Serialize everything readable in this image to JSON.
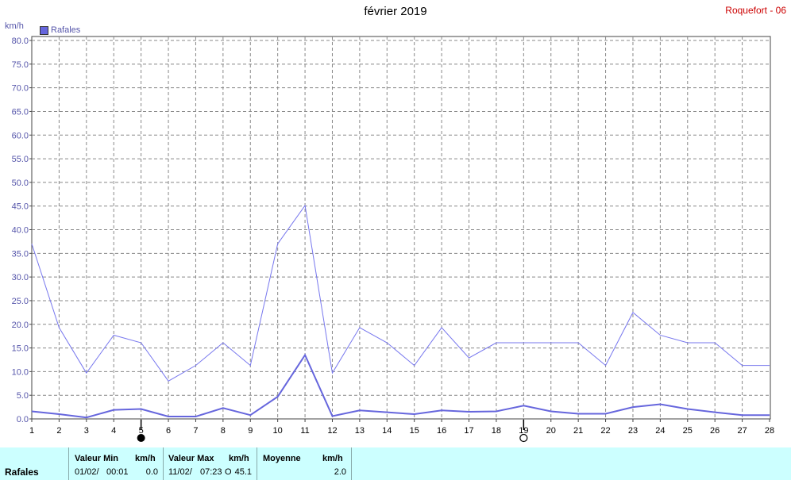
{
  "header": {
    "title": "février 2019",
    "station": "Roquefort - 06",
    "unit": "km/h"
  },
  "legend": {
    "label": "Rafales"
  },
  "colors": {
    "series": "#7777ee",
    "series_bold": "#6666dd",
    "grid": "#888888",
    "station": "#cc0000",
    "footer_bg": "#ccffff"
  },
  "chart_data": {
    "type": "line",
    "title": "février 2019",
    "ylabel": "km/h",
    "xlabel": "",
    "ylim": [
      0,
      80
    ],
    "xlim": [
      1,
      28
    ],
    "y_ticks": [
      "0.0",
      "5.0",
      "10.0",
      "15.0",
      "20.0",
      "25.0",
      "30.0",
      "35.0",
      "40.0",
      "45.0",
      "50.0",
      "55.0",
      "60.0",
      "65.0",
      "70.0",
      "75.0",
      "80.0"
    ],
    "x_ticks": [
      "1",
      "2",
      "3",
      "4",
      "5",
      "6",
      "7",
      "8",
      "9",
      "10",
      "11",
      "12",
      "13",
      "14",
      "15",
      "16",
      "17",
      "18",
      "19",
      "20",
      "21",
      "22",
      "23",
      "24",
      "25",
      "26",
      "27",
      "28"
    ],
    "grid": true,
    "legend_position": "top-left",
    "x": [
      1,
      2,
      3,
      4,
      5,
      6,
      7,
      8,
      9,
      10,
      11,
      12,
      13,
      14,
      15,
      16,
      17,
      18,
      19,
      20,
      21,
      22,
      23,
      24,
      25,
      26,
      27,
      28
    ],
    "series": [
      {
        "name": "Rafales",
        "values": [
          37.0,
          19.3,
          9.7,
          17.7,
          16.1,
          8.0,
          11.3,
          16.1,
          11.3,
          37.0,
          45.1,
          9.7,
          19.3,
          16.1,
          11.3,
          19.3,
          12.9,
          16.1,
          16.1,
          16.1,
          16.1,
          11.3,
          22.5,
          17.7,
          16.1,
          16.1,
          11.3,
          11.3
        ]
      },
      {
        "values": [
          1.6,
          1.0,
          0.3,
          1.9,
          2.1,
          0.5,
          0.5,
          2.3,
          0.8,
          4.7,
          13.5,
          0.6,
          1.8,
          1.4,
          1.0,
          1.8,
          1.5,
          1.6,
          2.8,
          1.6,
          1.1,
          1.1,
          2.5,
          3.1,
          2.1,
          1.4,
          0.8,
          0.8
        ]
      }
    ],
    "moon_phases": [
      {
        "day": 5,
        "phase": "new-moon-icon"
      },
      {
        "day": 19,
        "phase": "full-moon-icon"
      }
    ]
  },
  "footer": {
    "row_label": "Rafales",
    "min": {
      "header": "Valeur Min",
      "unit": "km/h",
      "date": "01/02/",
      "time": "00:01",
      "value": "0.0"
    },
    "max": {
      "header": "Valeur Max",
      "unit": "km/h",
      "date": "11/02/",
      "time": "07:23",
      "dir": "O",
      "value": "45.1"
    },
    "avg": {
      "header": "Moyenne",
      "unit": "km/h",
      "value": "2.0"
    }
  }
}
